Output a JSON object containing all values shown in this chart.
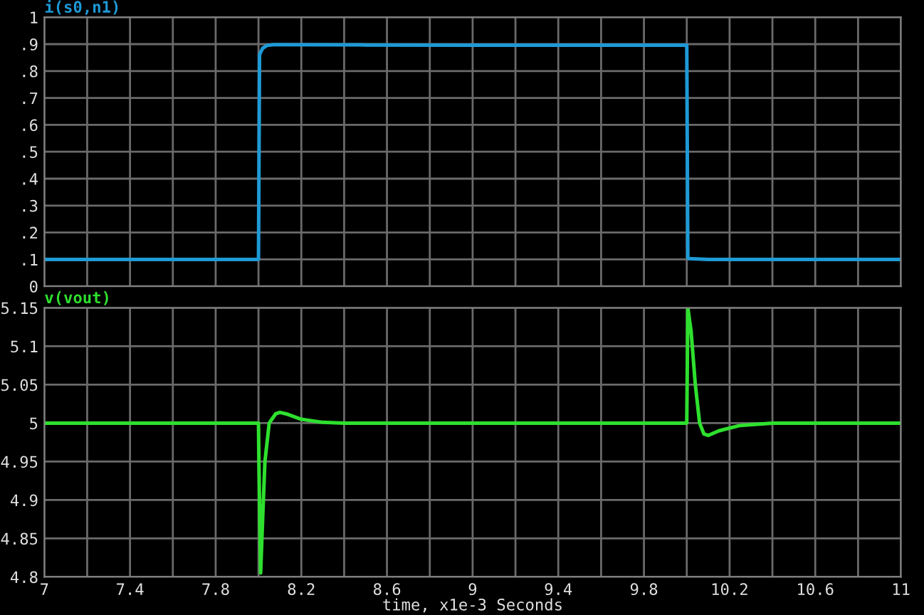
{
  "chart_data": [
    {
      "type": "line",
      "xlim": [
        7,
        11
      ],
      "ylim": [
        0,
        1
      ],
      "tick_labels": "y",
      "grid": true,
      "legend": false,
      "xticks": [
        7,
        {
          "value": 7.2,
          "label": null
        },
        {
          "value": 7.4,
          "label": null
        },
        {
          "value": 7.6,
          "label": null
        },
        {
          "value": 7.8,
          "label": null
        },
        {
          "value": 8,
          "label": null
        },
        {
          "value": 8.2,
          "label": null
        },
        {
          "value": 8.4,
          "label": null
        },
        {
          "value": 8.6,
          "label": null
        },
        {
          "value": 8.8,
          "label": null
        },
        {
          "value": 9,
          "label": null
        },
        {
          "value": 9.2,
          "label": null
        },
        {
          "value": 9.4,
          "label": null
        },
        {
          "value": 9.6,
          "label": null
        },
        {
          "value": 9.8,
          "label": null
        },
        {
          "value": 10,
          "label": null
        },
        {
          "value": 10.2,
          "label": null
        },
        {
          "value": 10.4,
          "label": null
        },
        {
          "value": 10.6,
          "label": null
        },
        {
          "value": 10.8,
          "label": null
        },
        11
      ],
      "yticks": [
        0,
        {
          "value": 0.1,
          "label": ".1"
        },
        {
          "value": 0.2,
          "label": ".2"
        },
        {
          "value": 0.3,
          "label": ".3"
        },
        {
          "value": 0.4,
          "label": ".4"
        },
        {
          "value": 0.5,
          "label": ".5"
        },
        {
          "value": 0.6,
          "label": ".6"
        },
        {
          "value": 0.7,
          "label": ".7"
        },
        {
          "value": 0.8,
          "label": ".8"
        },
        {
          "value": 0.9,
          "label": ".9"
        },
        1
      ],
      "series": [
        {
          "name": "i(s0,n1)",
          "color": "#1e9ad6",
          "x": [
            7,
            8.0,
            8.005,
            8.01,
            8.02,
            8.04,
            8.07,
            8.1,
            8.5,
            9.0,
            9.5,
            10.0,
            10.005,
            10.01,
            10.1,
            11
          ],
          "values": [
            0.1,
            0.1,
            0.86,
            0.87,
            0.885,
            0.895,
            0.898,
            0.898,
            0.897,
            0.896,
            0.896,
            0.896,
            0.105,
            0.103,
            0.1,
            0.1
          ]
        }
      ]
    },
    {
      "type": "line",
      "xlim": [
        7,
        11
      ],
      "ylim": [
        4.8,
        5.15
      ],
      "grid": true,
      "legend": false,
      "xlabel": "time, x1e-3 Seconds",
      "xticks": [
        7,
        {
          "value": 7.2,
          "label": null
        },
        7.4,
        {
          "value": 7.6,
          "label": null
        },
        7.8,
        {
          "value": 8,
          "label": null
        },
        8.2,
        {
          "value": 8.4,
          "label": null
        },
        8.6,
        {
          "value": 8.8,
          "label": null
        },
        9,
        {
          "value": 9.2,
          "label": null
        },
        9.4,
        {
          "value": 9.6,
          "label": null
        },
        9.8,
        {
          "value": 10,
          "label": null
        },
        10.2,
        {
          "value": 10.4,
          "label": null
        },
        10.6,
        {
          "value": 10.8,
          "label": null
        },
        11
      ],
      "yticks": [
        4.8,
        4.85,
        4.9,
        4.95,
        5,
        5.05,
        5.1,
        5.15
      ],
      "series": [
        {
          "name": "v(vout)",
          "color": "#2ee02e",
          "x": [
            7,
            8.0,
            8.002,
            8.01,
            8.02,
            8.03,
            8.05,
            8.08,
            8.1,
            8.13,
            8.2,
            8.3,
            8.4,
            10.0,
            10.005,
            10.02,
            10.04,
            10.06,
            10.08,
            10.1,
            10.15,
            10.25,
            10.4,
            11
          ],
          "values": [
            5.0,
            5.0,
            4.95,
            4.805,
            4.88,
            4.95,
            5.0,
            5.012,
            5.014,
            5.012,
            5.005,
            5.001,
            5.0,
            5.0,
            5.15,
            5.12,
            5.05,
            5.0,
            4.986,
            4.984,
            4.99,
            4.997,
            5.0,
            5.0
          ]
        }
      ]
    }
  ]
}
